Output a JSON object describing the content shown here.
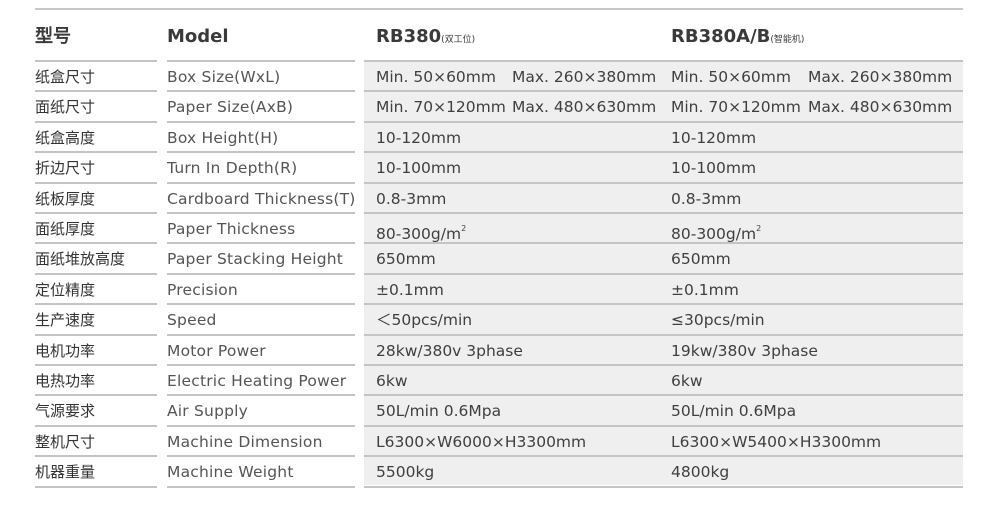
{
  "header": {
    "cn": "型号",
    "model": "Model",
    "m1": "RB380",
    "m1_note": "(双工位)",
    "m2": "RB380A/B",
    "m2_note": "(智能机)"
  },
  "rows": [
    {
      "cn": "纸盒尺寸",
      "en": "Box Size(WxL)",
      "v1a": "Min. 50×60mm",
      "v1b": "Max. 260×380mm",
      "v2a": "Min. 50×60mm",
      "v2b": "Max. 260×380mm"
    },
    {
      "cn": "面纸尺寸",
      "en": "Paper Size(AxB)",
      "v1a": "Min. 70×120mm",
      "v1b": "Max. 480×630mm",
      "v2a": "Min. 70×120mm",
      "v2b": "Max. 480×630mm"
    },
    {
      "cn": "纸盒高度",
      "en": "Box Height(H)",
      "v1a": "10-120mm",
      "v2a": "10-120mm"
    },
    {
      "cn": "折边尺寸",
      "en": "Turn In Depth(R)",
      "v1a": "10-100mm",
      "v2a": "10-100mm"
    },
    {
      "cn": "纸板厚度",
      "en": "Cardboard Thickness(T)",
      "v1a": "0.8-3mm",
      "v2a": "0.8-3mm"
    },
    {
      "cn": "面纸厚度",
      "en": "Paper Thickness",
      "v1a": "80-300g/m",
      "v2a": "80-300g/m",
      "sup": "2"
    },
    {
      "cn": "面纸堆放高度",
      "en": "Paper Stacking Height",
      "v1a": "650mm",
      "v2a": "650mm"
    },
    {
      "cn": "定位精度",
      "en": "Precision",
      "v1a": "±0.1mm",
      "v2a": "±0.1mm"
    },
    {
      "cn": "生产速度",
      "en": "Speed",
      "v1a": "＜50pcs/min",
      "v2a": "≤30pcs/min"
    },
    {
      "cn": "电机功率",
      "en": "Motor Power",
      "v1a": "28kw/380v 3phase",
      "v2a": "19kw/380v 3phase"
    },
    {
      "cn": "电热功率",
      "en": "Electric Heating Power",
      "v1a": "6kw",
      "v2a": "6kw"
    },
    {
      "cn": "气源要求",
      "en": "Air Supply",
      "v1a": "50L/min  0.6Mpa",
      "v2a": "50L/min  0.6Mpa"
    },
    {
      "cn": "整机尺寸",
      "en": "Machine Dimension",
      "v1a": "L6300×W6000×H3300mm",
      "v2a": "L6300×W5400×H3300mm"
    },
    {
      "cn": "机器重量",
      "en": "Machine Weight",
      "v1a": "5500kg",
      "v2a": "4800kg"
    }
  ]
}
